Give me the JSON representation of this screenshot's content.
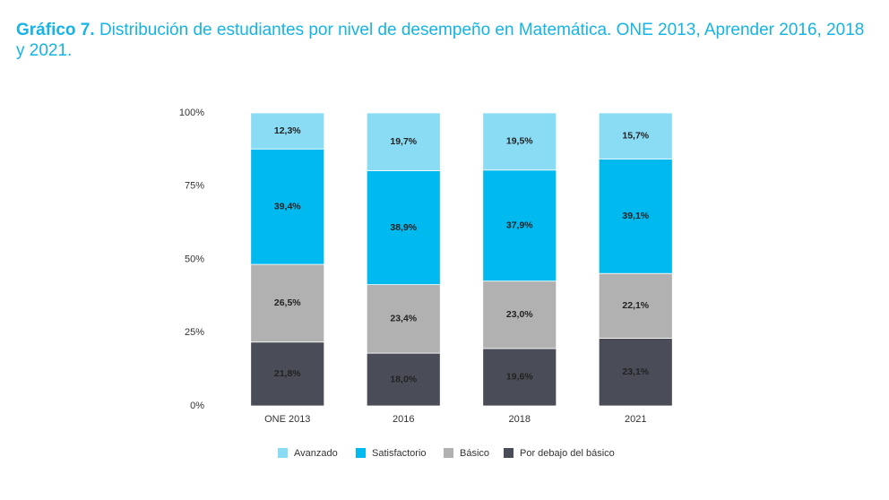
{
  "chart_data": {
    "type": "stacked_bar",
    "title_label": "Gráfico 7.",
    "title": "Distribución de estudiantes por nivel de desempeño en Matemática. ONE 2013, Aprender 2016, 2018 y 2021.",
    "categories": [
      "ONE 2013",
      "2016",
      "2018",
      "2021"
    ],
    "series": [
      {
        "name": "Avanzado",
        "color": "#8adcf5",
        "values": [
          12.3,
          19.7,
          19.5,
          15.7
        ],
        "value_labels": [
          "12,3%",
          "19,7%",
          "19,5%",
          "15,7%"
        ]
      },
      {
        "name": "Satisfactorio",
        "color": "#00b9ef",
        "values": [
          39.4,
          38.9,
          37.9,
          39.1
        ],
        "value_labels": [
          "39,4%",
          "38,9%",
          "37,9%",
          "39,1%"
        ]
      },
      {
        "name": "Básico",
        "color": "#b1b1b1",
        "values": [
          26.5,
          23.4,
          23.0,
          22.1
        ],
        "value_labels": [
          "26,5%",
          "23,4%",
          "23,0%",
          "22,1%"
        ]
      },
      {
        "name": "Por debajo del básico",
        "color": "#4a4d57",
        "values": [
          21.8,
          18.0,
          19.6,
          23.1
        ],
        "value_labels": [
          "21,8%",
          "18,0%",
          "19,6%",
          "23,1%"
        ]
      }
    ],
    "ylim": [
      0,
      100
    ],
    "yticks": [
      {
        "value": 0,
        "label": "0%"
      },
      {
        "value": 25,
        "label": "25%"
      },
      {
        "value": 50,
        "label": "50%"
      },
      {
        "value": 75,
        "label": "75%"
      },
      {
        "value": 100,
        "label": "100%"
      }
    ],
    "grid": false,
    "legend": "bottom"
  }
}
